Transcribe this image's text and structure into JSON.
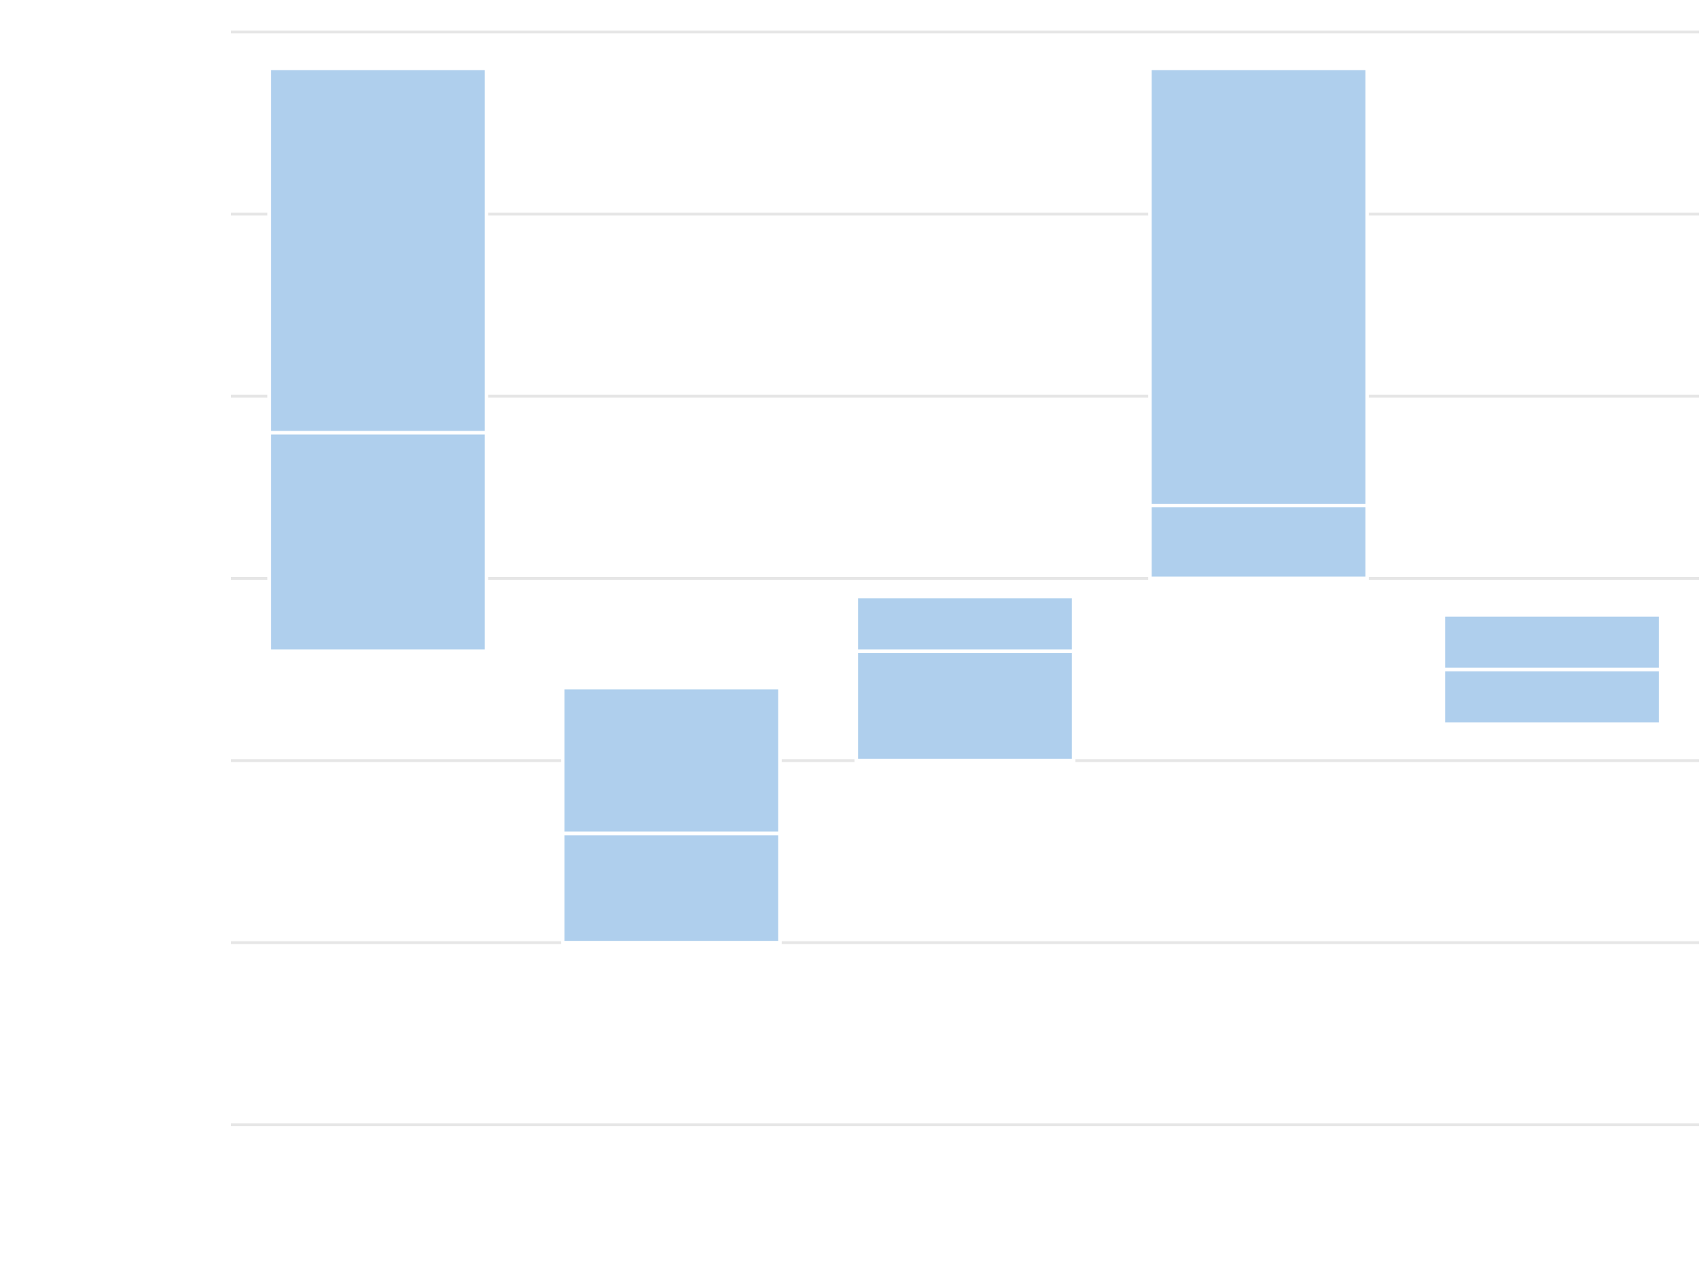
{
  "chart_data": {
    "type": "bar",
    "title": "",
    "xlabel": "",
    "ylabel": "",
    "categories": [
      "",
      "",
      "",
      "",
      ""
    ],
    "ylim": [
      0,
      6
    ],
    "y_ticks": [
      0,
      1,
      2,
      3,
      4,
      5,
      6
    ],
    "grid": true,
    "legend": "none",
    "bars": [
      {
        "segments": [
          [
            2.6,
            3.8
          ],
          [
            3.8,
            5.8
          ]
        ]
      },
      {
        "segments": [
          [
            1.0,
            1.6
          ],
          [
            1.6,
            2.4
          ]
        ]
      },
      {
        "segments": [
          [
            2.0,
            2.6
          ],
          [
            2.6,
            2.9
          ]
        ]
      },
      {
        "segments": [
          [
            3.0,
            3.4
          ],
          [
            3.4,
            5.8
          ]
        ]
      },
      {
        "segments": [
          [
            2.2,
            2.5
          ],
          [
            2.5,
            2.8
          ]
        ]
      }
    ],
    "colors": {
      "bar": "#afcfed",
      "grid": "#e6e6e6",
      "background": "#ffffff",
      "separator": "#ffffff"
    }
  }
}
